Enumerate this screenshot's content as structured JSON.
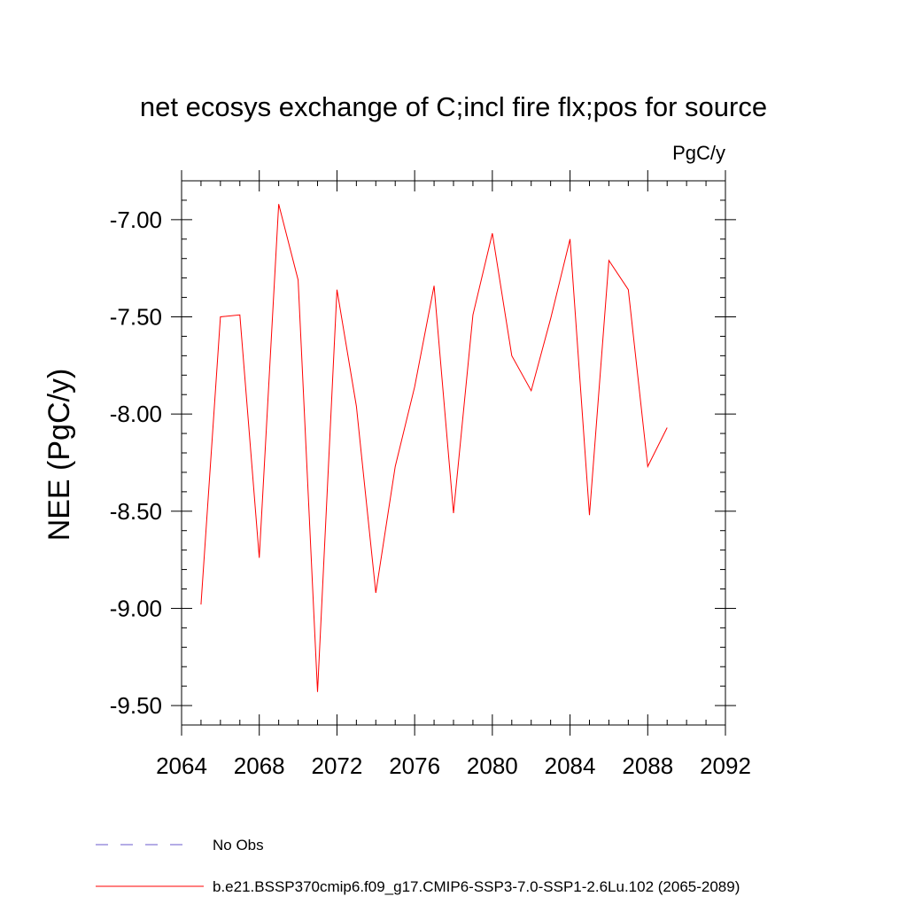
{
  "chart_data": {
    "type": "line",
    "title": "net ecosys exchange of C;incl fire flx;pos for source",
    "units_label": "PgC/y",
    "ylabel": "NEE  (PgC/y)",
    "xlabel": "",
    "xlim": [
      2064,
      2092
    ],
    "ylim": [
      -9.6,
      -6.8
    ],
    "x_ticks": [
      2064,
      2068,
      2072,
      2076,
      2080,
      2084,
      2088,
      2092
    ],
    "x_tick_labels": [
      "2064",
      "2068",
      "2072",
      "2076",
      "2080",
      "2084",
      "2088",
      "2092"
    ],
    "y_ticks": [
      -9.5,
      -9.0,
      -8.5,
      -8.0,
      -7.5,
      -7.0
    ],
    "y_tick_labels": [
      "-9.50",
      "-9.00",
      "-8.50",
      "-8.00",
      "-7.50",
      "-7.00"
    ],
    "grid": false,
    "legend_position": "bottom-left",
    "x": [
      2065,
      2066,
      2067,
      2068,
      2069,
      2070,
      2071,
      2072,
      2073,
      2074,
      2075,
      2076,
      2077,
      2078,
      2079,
      2080,
      2081,
      2082,
      2083,
      2084,
      2085,
      2086,
      2087,
      2088,
      2089
    ],
    "series": [
      {
        "name": "b.e21.BSSP370cmip6.f09_g17.CMIP6-SSP3-7.0-SSP1-2.6Lu.102 (2065-2089)",
        "color": "#ff0000",
        "style": "solid",
        "values": [
          -8.98,
          -7.5,
          -7.49,
          -8.74,
          -6.92,
          -7.31,
          -9.43,
          -7.36,
          -7.96,
          -8.92,
          -8.27,
          -7.86,
          -7.34,
          -8.51,
          -7.49,
          -7.07,
          -7.7,
          -7.88,
          -7.51,
          -7.1,
          -8.52,
          -7.21,
          -7.36,
          -8.27,
          -8.07
        ]
      }
    ],
    "legend": [
      {
        "label": "No Obs",
        "color": "#6a5acd",
        "style": "dashed"
      },
      {
        "label": "b.e21.BSSP370cmip6.f09_g17.CMIP6-SSP3-7.0-SSP1-2.6Lu.102 (2065-2089)",
        "color": "#ff0000",
        "style": "solid"
      }
    ]
  }
}
